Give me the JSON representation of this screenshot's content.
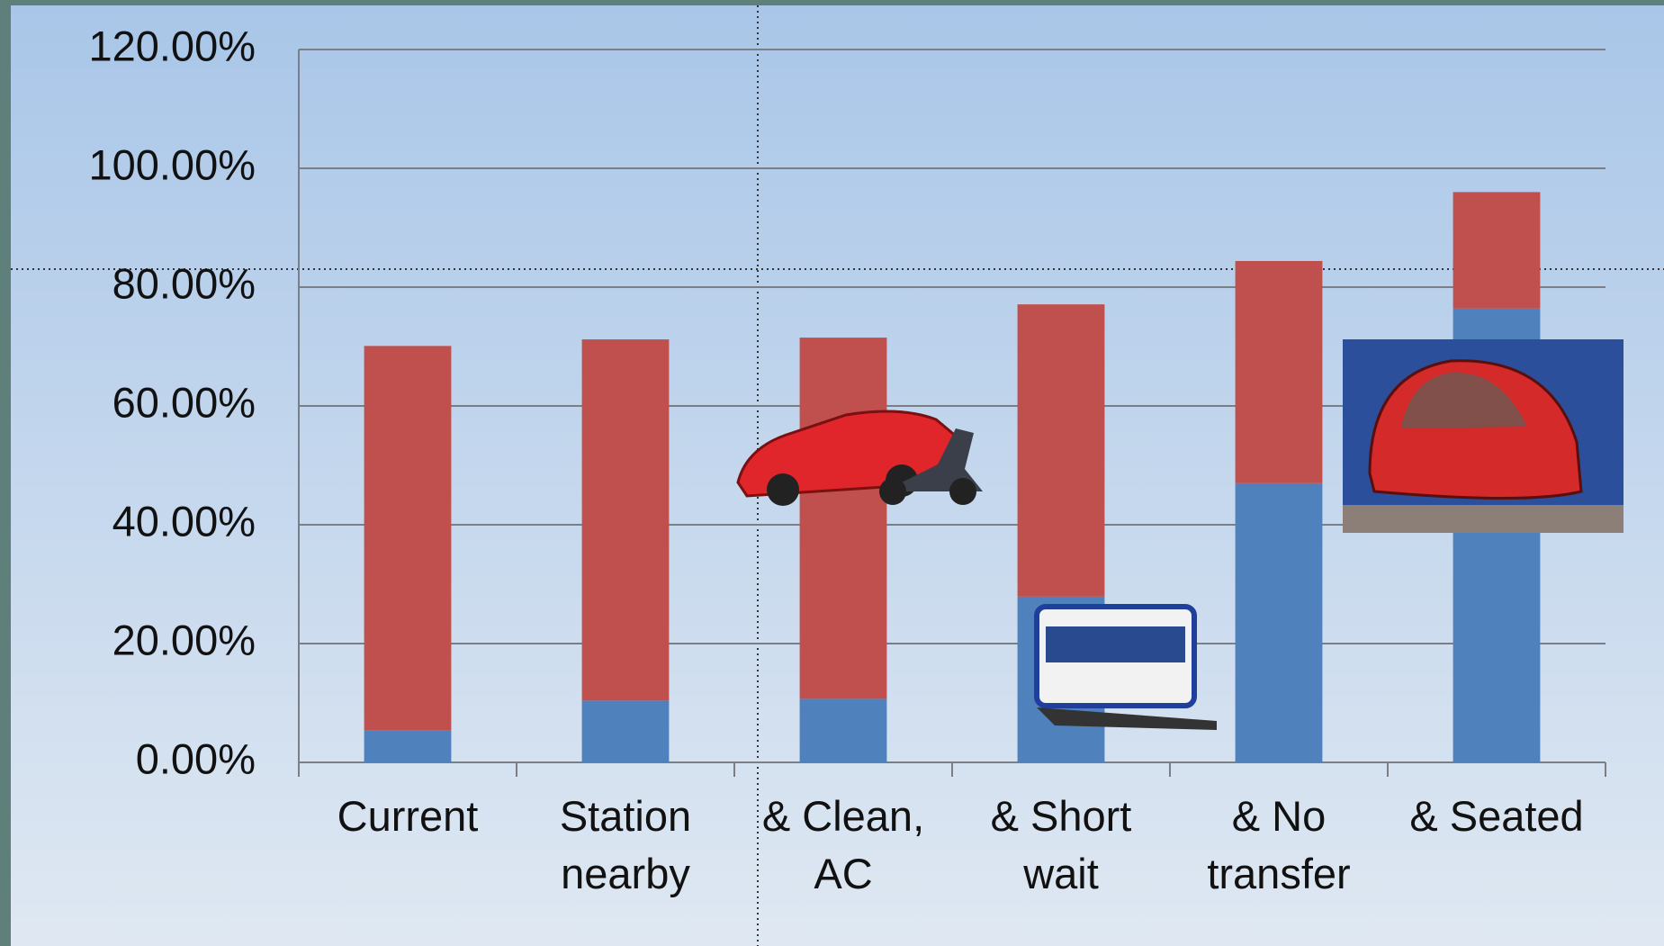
{
  "chart_data": {
    "type": "bar",
    "stacked": true,
    "categories": [
      "Current",
      "Station nearby",
      "& Clean, AC",
      "& Short wait",
      "& No transfer",
      "& Seated"
    ],
    "series": [
      {
        "color": "#4f81bd",
        "values": [
          5.4,
          10.4,
          10.7,
          27.9,
          47.0,
          76.4
        ]
      },
      {
        "color": "#c0504d",
        "values": [
          64.7,
          60.8,
          60.8,
          49.2,
          37.4,
          19.6
        ]
      }
    ],
    "ylim": [
      0,
      120
    ],
    "yticks": [
      {
        "value": 0,
        "label": "0.00%"
      },
      {
        "value": 20,
        "label": "20.00%"
      },
      {
        "value": 40,
        "label": "40.00%"
      },
      {
        "value": 60,
        "label": "60.00%"
      },
      {
        "value": 80,
        "label": "80.00%"
      },
      {
        "value": 100,
        "label": "100.00%"
      },
      {
        "value": 120,
        "label": "120.00%"
      }
    ],
    "grid": true
  }
}
